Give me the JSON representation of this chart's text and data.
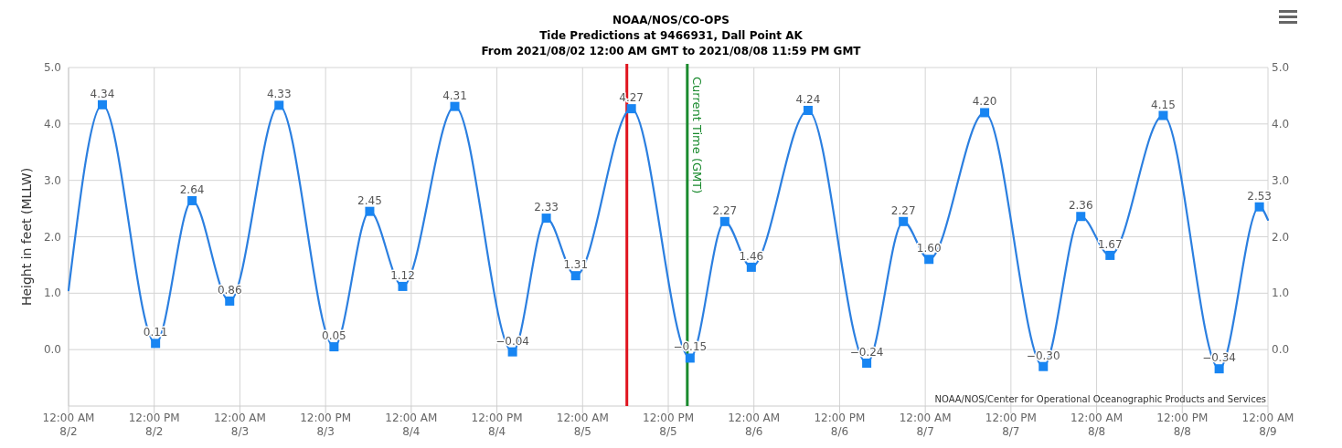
{
  "chart_data": {
    "type": "line",
    "title": "NOAA/NOS/CO-OPS",
    "subtitle": "Tide Predictions at 9466931, Dall Point AK\nFrom 2021/08/02 12:00 AM GMT to 2021/08/08 11:59 PM GMT",
    "ylabel": "Height in feet (MLLW)",
    "x": [
      "2021-08-02T00:00",
      "2021-08-02T04:44",
      "2021-08-02T12:11",
      "2021-08-02T17:18",
      "2021-08-02T22:34",
      "2021-08-03T05:29",
      "2021-08-03T13:11",
      "2021-08-03T18:11",
      "2021-08-03T22:48",
      "2021-08-04T06:06",
      "2021-08-04T14:11",
      "2021-08-04T18:55",
      "2021-08-04T23:02",
      "2021-08-05T06:50",
      "2021-08-05T15:03",
      "2021-08-05T19:55",
      "2021-08-05T23:38",
      "2021-08-06T07:35",
      "2021-08-06T15:48",
      "2021-08-06T20:56",
      "2021-08-07T00:31",
      "2021-08-07T08:19",
      "2021-08-07T16:32",
      "2021-08-07T21:47",
      "2021-08-08T01:53",
      "2021-08-08T09:20",
      "2021-08-08T17:10",
      "2021-08-08T22:48",
      "2021-08-09T00:00"
    ],
    "series": [
      {
        "color": "#2b7fe0",
        "values": [
          1.05,
          4.34,
          0.11,
          2.64,
          0.86,
          4.33,
          0.05,
          2.45,
          1.12,
          4.31,
          -0.04,
          2.33,
          1.31,
          4.27,
          -0.15,
          2.27,
          1.46,
          4.24,
          -0.24,
          2.27,
          1.6,
          4.2,
          -0.3,
          2.36,
          1.67,
          4.15,
          -0.34,
          2.53,
          2.3
        ],
        "value_labels": [
          null,
          "4.34",
          "0.11",
          "2.64",
          "0.86",
          "4.33",
          "0.05",
          "2.45",
          "1.12",
          "4.31",
          "−0.04",
          "2.33",
          "1.31",
          "4.27",
          "−0.15",
          "2.27",
          "1.46",
          "4.24",
          "−0.24",
          "2.27",
          "1.60",
          "4.20",
          "−0.30",
          "2.36",
          "1.67",
          "4.15",
          "−0.34",
          "2.53",
          null
        ]
      }
    ],
    "marker": "square",
    "grid": true,
    "xlim": [
      "2021-08-02T00:00",
      "2021-08-09T00:00"
    ],
    "xticks": [
      {
        "value": "2021-08-02T00:00",
        "label": "12:00 AM\n8/2"
      },
      {
        "value": "2021-08-02T12:00",
        "label": "12:00 PM\n8/2"
      },
      {
        "value": "2021-08-03T00:00",
        "label": "12:00 AM\n8/3"
      },
      {
        "value": "2021-08-03T12:00",
        "label": "12:00 PM\n8/3"
      },
      {
        "value": "2021-08-04T00:00",
        "label": "12:00 AM\n8/4"
      },
      {
        "value": "2021-08-04T12:00",
        "label": "12:00 PM\n8/4"
      },
      {
        "value": "2021-08-05T00:00",
        "label": "12:00 AM\n8/5"
      },
      {
        "value": "2021-08-05T12:00",
        "label": "12:00 PM\n8/5"
      },
      {
        "value": "2021-08-06T00:00",
        "label": "12:00 AM\n8/6"
      },
      {
        "value": "2021-08-06T12:00",
        "label": "12:00 PM\n8/6"
      },
      {
        "value": "2021-08-07T00:00",
        "label": "12:00 AM\n8/7"
      },
      {
        "value": "2021-08-07T12:00",
        "label": "12:00 PM\n8/7"
      },
      {
        "value": "2021-08-08T00:00",
        "label": "12:00 AM\n8/8"
      },
      {
        "value": "2021-08-08T12:00",
        "label": "12:00 PM\n8/8"
      },
      {
        "value": "2021-08-09T00:00",
        "label": "12:00 AM\n8/9"
      }
    ],
    "ylim": [
      -1,
      5
    ],
    "yticks": [
      {
        "value": 0,
        "label": "0.0"
      },
      {
        "value": 1,
        "label": "1.0"
      },
      {
        "value": 2,
        "label": "2.0"
      },
      {
        "value": 3,
        "label": "3.0"
      },
      {
        "value": 4,
        "label": "4.0"
      },
      {
        "value": 5,
        "label": "5.0"
      }
    ],
    "y2lim": [
      -1,
      5
    ],
    "y2ticks": [
      {
        "value": 0,
        "label": "0.0"
      },
      {
        "value": 1,
        "label": "1.0"
      },
      {
        "value": 2,
        "label": "2.0"
      },
      {
        "value": 3,
        "label": "3.0"
      },
      {
        "value": 4,
        "label": "4.0"
      },
      {
        "value": 5,
        "label": "5.0"
      }
    ],
    "ref_lines": [
      {
        "axis": "x",
        "value": "2021-08-05T06:12",
        "color": "#e0141e"
      },
      {
        "axis": "x",
        "value": "2021-08-05T14:40",
        "label": "Current Time (GMT)",
        "color": "#1a8a2e"
      }
    ],
    "annotations": [
      "NOAA/NOS/Center for Operational Oceanographic Products and Services"
    ]
  }
}
